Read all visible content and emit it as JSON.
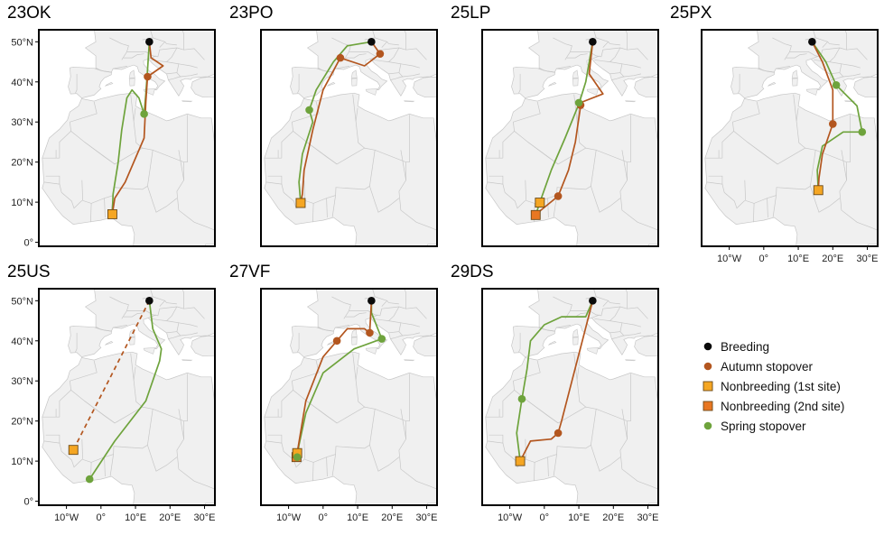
{
  "figure": {
    "panels": [
      {
        "id": "23OK",
        "title": "23OK",
        "breeding": [
          14,
          50
        ],
        "autumn_route": [
          [
            14,
            50
          ],
          [
            14.5,
            46
          ],
          [
            18,
            44
          ],
          [
            13.5,
            41.3
          ],
          [
            13,
            35
          ],
          [
            12.5,
            26
          ],
          [
            7,
            15
          ],
          [
            4,
            11
          ],
          [
            3.3,
            7
          ]
        ],
        "spring_route": [
          [
            3.3,
            7
          ],
          [
            3.5,
            12
          ],
          [
            5,
            20
          ],
          [
            6,
            28
          ],
          [
            7.5,
            36
          ],
          [
            9,
            38
          ],
          [
            11,
            36
          ],
          [
            12.5,
            32
          ],
          [
            13,
            37
          ],
          [
            13.5,
            43
          ],
          [
            14,
            50
          ]
        ],
        "autumn_stopovers": [
          [
            13.5,
            41.3
          ]
        ],
        "spring_stopovers": [
          [
            12.5,
            32
          ]
        ],
        "nonbreeding_1": [
          [
            3.3,
            7
          ]
        ],
        "nonbreeding_2": []
      },
      {
        "id": "23PO",
        "title": "23PO",
        "breeding": [
          14,
          50
        ],
        "autumn_route": [
          [
            14,
            50
          ],
          [
            16.5,
            47
          ],
          [
            12,
            44
          ],
          [
            5,
            46
          ],
          [
            0,
            38
          ],
          [
            -3,
            28
          ],
          [
            -5.5,
            18
          ],
          [
            -6,
            12
          ],
          [
            -6.5,
            9.8
          ]
        ],
        "spring_route": [
          [
            -6.5,
            9.8
          ],
          [
            -7,
            15
          ],
          [
            -6,
            22
          ],
          [
            -3,
            30
          ],
          [
            -4,
            33
          ],
          [
            -2,
            38
          ],
          [
            3,
            45
          ],
          [
            7,
            49
          ],
          [
            14,
            50
          ]
        ],
        "autumn_stopovers": [
          [
            5,
            46
          ],
          [
            16.5,
            47
          ]
        ],
        "spring_stopovers": [
          [
            -4,
            33
          ]
        ],
        "nonbreeding_1": [
          [
            -6.5,
            9.8
          ]
        ],
        "nonbreeding_2": []
      },
      {
        "id": "25LP",
        "title": "25LP",
        "breeding": [
          14,
          50
        ],
        "autumn_route": [
          [
            14,
            50
          ],
          [
            13,
            42
          ],
          [
            17,
            37
          ],
          [
            11,
            35
          ],
          [
            10.5,
            34
          ],
          [
            9,
            25
          ],
          [
            7,
            18
          ],
          [
            4,
            11.5
          ],
          [
            -1,
            8
          ],
          [
            -2.5,
            6.8
          ]
        ],
        "spring_route": [
          [
            -2.5,
            6.8
          ],
          [
            -1.3,
            10
          ],
          [
            2,
            18
          ],
          [
            6,
            26
          ],
          [
            10,
            34.5
          ],
          [
            12,
            40
          ],
          [
            14,
            50
          ]
        ],
        "autumn_stopovers": [
          [
            10.5,
            34.2
          ],
          [
            4,
            11.5
          ]
        ],
        "spring_stopovers": [
          [
            10,
            34.8
          ]
        ],
        "nonbreeding_1": [
          [
            -1.3,
            9.9
          ]
        ],
        "nonbreeding_2": [
          [
            -2.5,
            6.8
          ]
        ]
      },
      {
        "id": "25PX",
        "title": "25PX",
        "breeding": [
          14,
          50
        ],
        "autumn_route": [
          [
            14,
            50
          ],
          [
            17,
            45
          ],
          [
            20,
            38
          ],
          [
            20,
            29.5
          ],
          [
            17,
            22
          ],
          [
            16,
            16
          ],
          [
            15.8,
            13
          ]
        ],
        "spring_route": [
          [
            15.8,
            13
          ],
          [
            15.5,
            18
          ],
          [
            17,
            24
          ],
          [
            23,
            27.5
          ],
          [
            28.5,
            27.5
          ],
          [
            27,
            34
          ],
          [
            21,
            39.2
          ],
          [
            18,
            45
          ],
          [
            14,
            50
          ]
        ],
        "autumn_stopovers": [
          [
            20,
            29.5
          ]
        ],
        "spring_stopovers": [
          [
            28.5,
            27.5
          ],
          [
            21,
            39.2
          ]
        ],
        "nonbreeding_1": [
          [
            15.8,
            13
          ]
        ],
        "nonbreeding_2": []
      },
      {
        "id": "25US",
        "title": "25US",
        "breeding": [
          14,
          50
        ],
        "autumn_route": [
          [
            14,
            50
          ],
          [
            -8,
            12.8
          ]
        ],
        "autumn_dashed": true,
        "spring_route": [
          [
            -3.3,
            5.5
          ],
          [
            4,
            15
          ],
          [
            13,
            25
          ],
          [
            17,
            35
          ],
          [
            17.5,
            38
          ],
          [
            15,
            43
          ],
          [
            14,
            50
          ]
        ],
        "autumn_stopovers": [],
        "spring_stopovers": [
          [
            -3.3,
            5.5
          ]
        ],
        "nonbreeding_1": [
          [
            -8,
            12.8
          ]
        ],
        "nonbreeding_2": []
      },
      {
        "id": "27VF",
        "title": "27VF",
        "breeding": [
          14,
          50
        ],
        "autumn_route": [
          [
            14,
            50
          ],
          [
            13.5,
            42
          ],
          [
            12,
            43
          ],
          [
            7,
            43
          ],
          [
            4,
            40
          ],
          [
            0,
            36
          ],
          [
            -5,
            25
          ],
          [
            -7.5,
            12
          ]
        ],
        "spring_route": [
          [
            -7.5,
            11
          ],
          [
            -7,
            14
          ],
          [
            -5,
            22
          ],
          [
            0,
            32
          ],
          [
            9,
            38
          ],
          [
            17,
            40.5
          ],
          [
            14,
            47
          ],
          [
            14,
            50
          ]
        ],
        "autumn_stopovers": [
          [
            4,
            40
          ],
          [
            13.5,
            42
          ]
        ],
        "spring_stopovers": [
          [
            17,
            40.5
          ],
          [
            -7.5,
            11
          ]
        ],
        "nonbreeding_1": [
          [
            -7.5,
            12
          ]
        ],
        "nonbreeding_2": [
          [
            -7.7,
            11
          ]
        ]
      },
      {
        "id": "29DS",
        "title": "29DS",
        "breeding": [
          14,
          50
        ],
        "autumn_route": [
          [
            14,
            50
          ],
          [
            11,
            40
          ],
          [
            8,
            30
          ],
          [
            5,
            20
          ],
          [
            4,
            17
          ],
          [
            2,
            15.5
          ],
          [
            -4,
            15
          ],
          [
            -7,
            10
          ]
        ],
        "spring_route": [
          [
            -7,
            10
          ],
          [
            -8,
            17
          ],
          [
            -6.5,
            25.5
          ],
          [
            -5,
            33
          ],
          [
            -4,
            40
          ],
          [
            0,
            44
          ],
          [
            5,
            46
          ],
          [
            12,
            46
          ],
          [
            14,
            50
          ]
        ],
        "autumn_stopovers": [
          [
            4,
            17
          ]
        ],
        "spring_stopovers": [
          [
            -6.5,
            25.5
          ]
        ],
        "nonbreeding_1": [
          [
            -7,
            10
          ]
        ],
        "nonbreeding_2": []
      }
    ],
    "y_ticks": [
      "0°",
      "10°N",
      "20°N",
      "30°N",
      "40°N",
      "50°N"
    ],
    "x_ticks": [
      "10°W",
      "0°",
      "10°E",
      "20°E",
      "30°E"
    ],
    "legend": [
      {
        "label": "Breeding",
        "kind": "breeding",
        "color": "#0a0a0a"
      },
      {
        "label": "Autumn stopover",
        "kind": "autumn",
        "color": "#b3561f"
      },
      {
        "label": "Nonbreeding (1st site)",
        "kind": "nb1",
        "color": "#f5a623"
      },
      {
        "label": "Nonbreeding (2nd site)",
        "kind": "nb2",
        "color": "#e87722"
      },
      {
        "label": "Spring stopover",
        "kind": "spring",
        "color": "#6ea33c"
      }
    ],
    "colors": {
      "autumn": "#b3561f",
      "spring": "#6ea33c",
      "land": "#f0f0f0",
      "sea": "#ffffff",
      "border": "#c7c7c7",
      "frame": "#000000"
    }
  }
}
